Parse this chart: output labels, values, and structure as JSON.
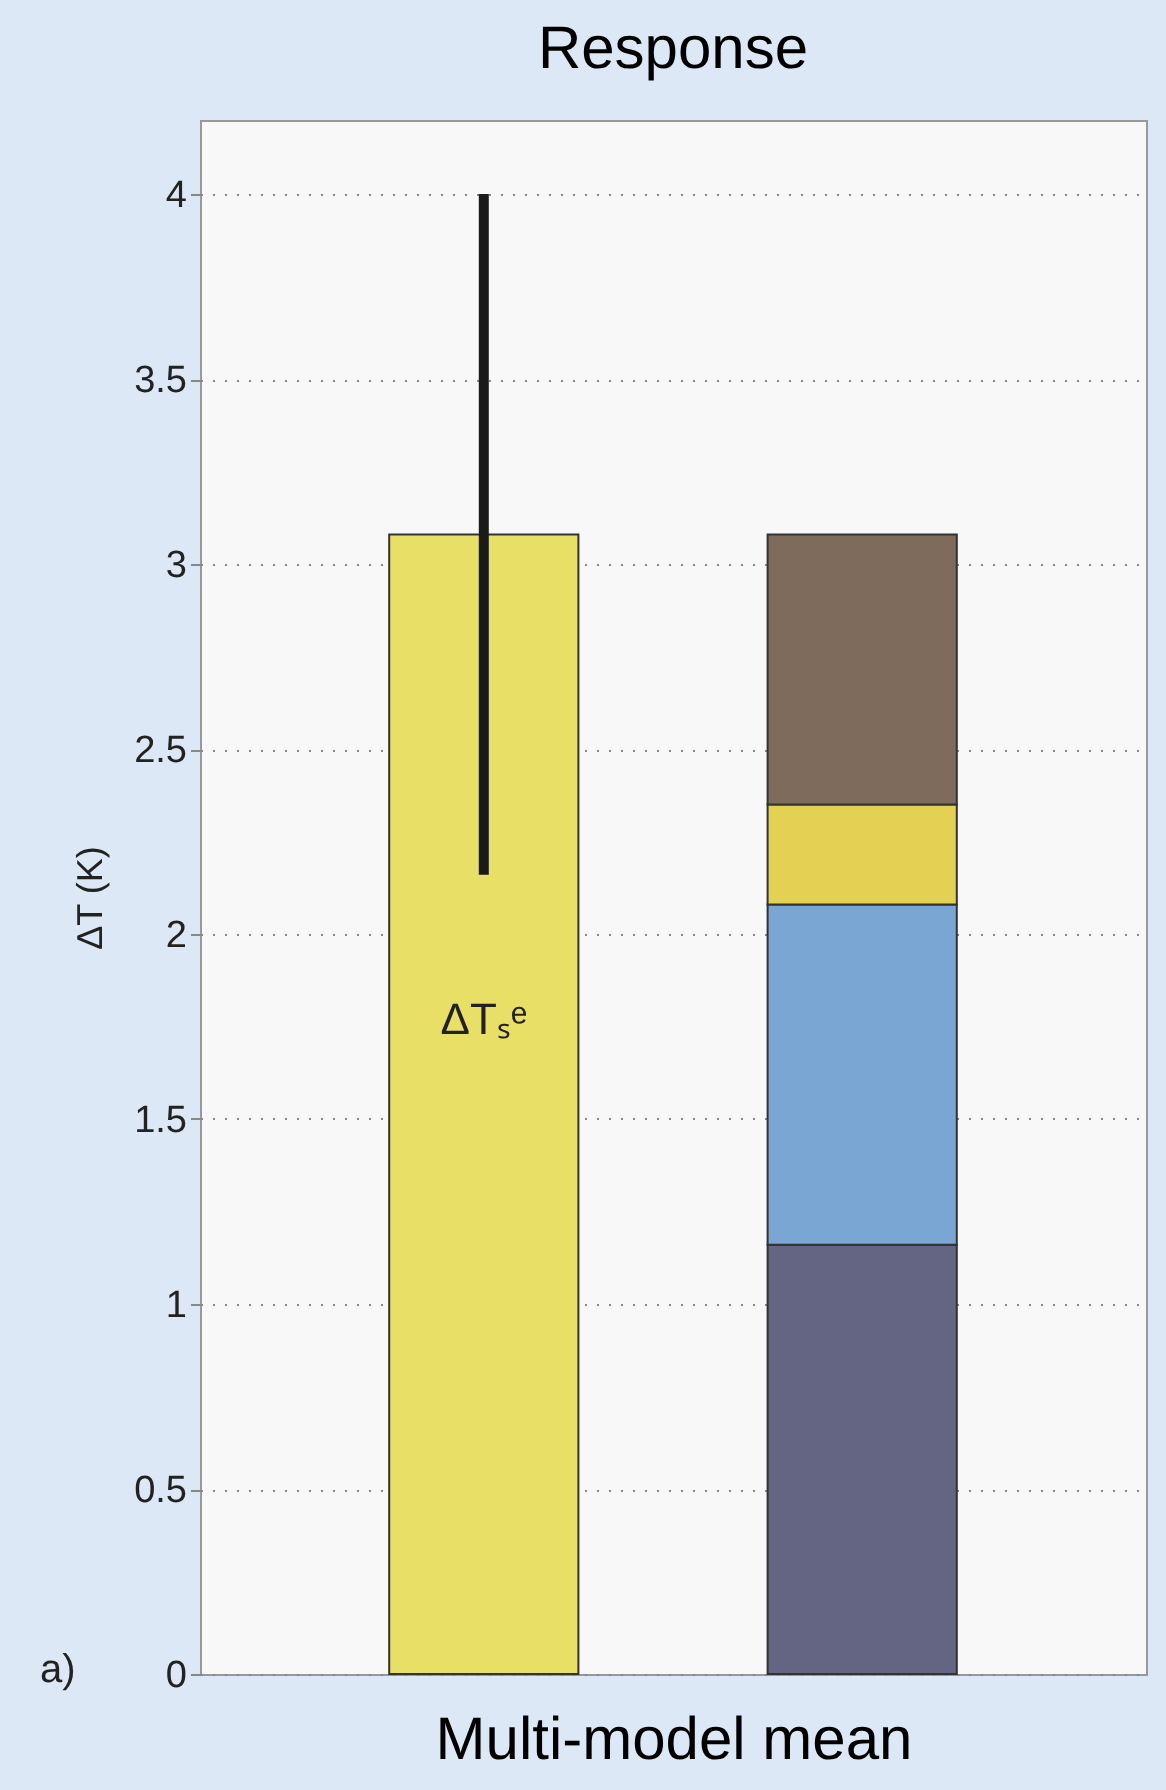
{
  "chart_data": {
    "type": "bar",
    "title": "Response",
    "xlabel": "Multi-model mean",
    "ylabel": "ΔT (K)",
    "categories": [
      null,
      null
    ],
    "stacked": true,
    "series": [
      {
        "colors": [
          "#e8df66",
          "#646483"
        ],
        "values": [
          3.08,
          1.16
        ],
        "errors": [
          [
            2.16,
            4.0
          ],
          null
        ]
      },
      {
        "color": "#79a6d2",
        "values": [
          null,
          0.92
        ]
      },
      {
        "color": "#e4d153",
        "values": [
          null,
          0.27
        ]
      },
      {
        "color": "#7f6b5c",
        "values": [
          null,
          0.73
        ]
      }
    ],
    "ylim": [
      0,
      4.2
    ],
    "yticks": [
      0,
      0.5,
      1,
      1.5,
      2,
      2.5,
      3,
      3.5,
      4
    ],
    "annotations": [
      "ΔTₛᵉ",
      "a)"
    ],
    "grid": "y"
  }
}
